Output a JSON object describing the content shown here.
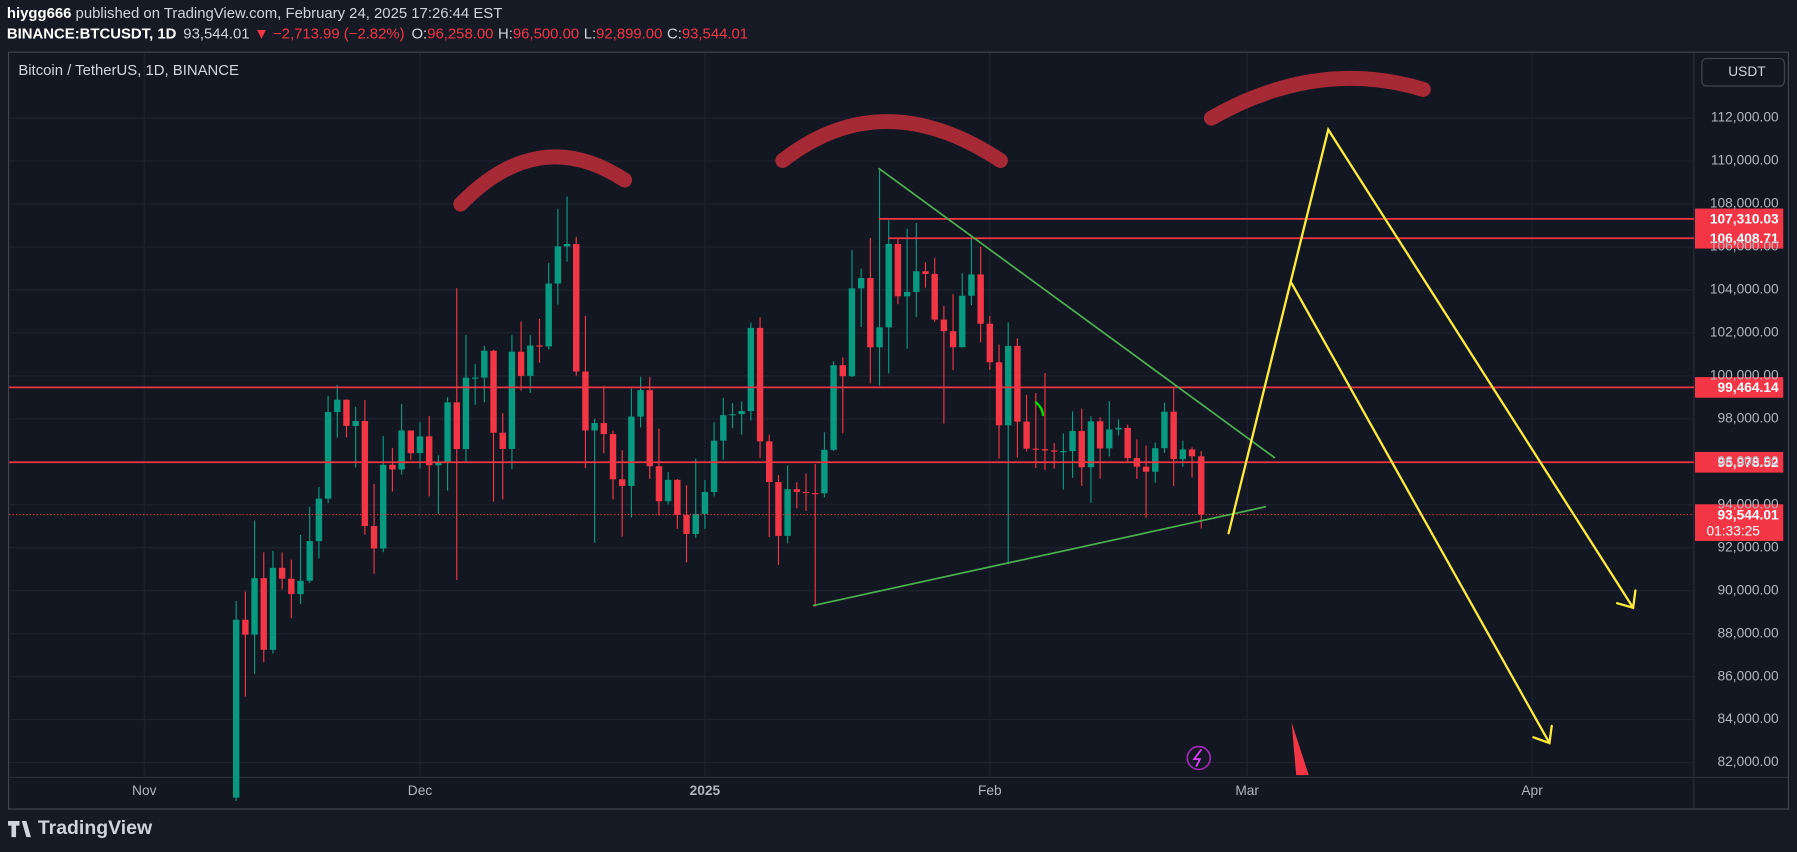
{
  "header": {
    "author": "hiygg666",
    "published": " published on TradingView.com, February 24, 2025 17:26:44 EST",
    "symbol": "BINANCE:BTCUSDT, 1D",
    "price": "93,544.01",
    "change": "▼ −2,713.99 (−2.82%)",
    "ohlc": [
      {
        "key": "O:",
        "value": "96,258.00"
      },
      {
        "key": "H:",
        "value": "96,500.00"
      },
      {
        "key": "L:",
        "value": "92,899.00"
      },
      {
        "key": "C:",
        "value": "93,544.01"
      }
    ]
  },
  "chart_data": {
    "type": "candlestick",
    "title": "Bitcoin / TetherUS, 1D, BINANCE",
    "currency": "USDT",
    "up_color": "#089981",
    "down_color": "#f23645",
    "grid": true,
    "xlim": [
      -14.7,
      168.6
    ],
    "xticks": [
      {
        "value": 0,
        "label": "Nov"
      },
      {
        "value": 30,
        "label": "Dec"
      },
      {
        "value": 61,
        "label": "2025"
      },
      {
        "value": 92,
        "label": "Feb"
      },
      {
        "value": 120,
        "label": "Mar"
      },
      {
        "value": 151,
        "label": "Apr"
      }
    ],
    "ylim": [
      81200,
      114936
    ],
    "yticks": [
      {
        "value": 82000,
        "label": "82,000.00"
      },
      {
        "value": 84000,
        "label": "84,000.00"
      },
      {
        "value": 86000,
        "label": "86,000.00"
      },
      {
        "value": 88000,
        "label": "88,000.00"
      },
      {
        "value": 90000,
        "label": "90,000.00"
      },
      {
        "value": 92000,
        "label": "92,000.00"
      },
      {
        "value": 94000,
        "label": "94,000.00"
      },
      {
        "value": 96000,
        "label": "96,000.00"
      },
      {
        "value": 98000,
        "label": "98,000.00"
      },
      {
        "value": 100000,
        "label": "100,000.00"
      },
      {
        "value": 102000,
        "label": "102,000.00"
      },
      {
        "value": 104000,
        "label": "104,000.00"
      },
      {
        "value": 106000,
        "label": "106,000.00"
      },
      {
        "value": 108000,
        "label": "108,000.00"
      },
      {
        "value": 110000,
        "label": "110,000.00"
      },
      {
        "value": 112000,
        "label": "112,000.00"
      }
    ],
    "hlines": [
      {
        "value": 107310.03,
        "label": "107,310.03"
      },
      {
        "value": 106408.71,
        "label": "106,408.71"
      },
      {
        "value": 99464.14,
        "label": "99,464.14"
      },
      {
        "value": 95978.52,
        "label": "95,978.52"
      }
    ],
    "last_price": {
      "value": 93544.01,
      "label": "93,544.01"
    },
    "countdown": "01:33:25",
    "x": [
      10,
      11,
      12,
      13,
      14,
      15,
      16,
      17,
      18,
      19,
      20,
      21,
      22,
      23,
      24,
      25,
      26,
      27,
      28,
      29,
      30,
      31,
      32,
      33,
      34,
      35,
      36,
      37,
      38,
      39,
      40,
      41,
      42,
      43,
      44,
      45,
      46,
      47,
      48,
      49,
      50,
      51,
      52,
      53,
      54,
      55,
      56,
      57,
      58,
      59,
      60,
      61,
      62,
      63,
      64,
      65,
      66,
      67,
      68,
      69,
      70,
      71,
      72,
      73,
      74,
      75,
      76,
      77,
      78,
      79,
      80,
      81,
      82,
      83,
      84,
      85,
      86,
      87,
      88,
      89,
      90,
      91,
      92,
      93,
      94,
      95,
      96,
      97,
      98,
      99,
      100,
      101,
      102,
      103,
      104,
      105,
      106,
      107,
      108,
      109,
      110,
      111,
      112,
      113,
      114,
      115
    ],
    "open": [
      80370,
      88648,
      87955,
      90585,
      87250,
      91066,
      90558,
      89845,
      90464,
      92310,
      94286,
      98317,
      98892,
      97672,
      97900,
      93010,
      91966,
      95863,
      95643,
      97460,
      96407,
      97185,
      95840,
      96002,
      98768,
      96593,
      99920,
      99923,
      101170,
      97355,
      96600,
      101125,
      100000,
      101417,
      101372,
      104298,
      106030,
      106140,
      100204,
      97461,
      97805,
      97291,
      95186,
      94877,
      98107,
      99336,
      95795,
      94165,
      95163,
      93530,
      92643,
      93576,
      94591,
      96984,
      98174,
      98220,
      98364,
      102235,
      96954,
      95060,
      92552,
      94726,
      94599,
      94545,
      94536,
      96560,
      100497,
      99987,
      104077,
      104556,
      101331,
      102260,
      106143,
      103706,
      103910,
      104870,
      104746,
      102620,
      102082,
      101335,
      103733,
      104722,
      102429,
      100635,
      97700,
      101398,
      97871,
      96615,
      96593,
      96529,
      96482,
      96500,
      97437,
      95748,
      97885,
      96623,
      97508,
      97580,
      96175,
      95773,
      95539,
      96635,
      98333,
      96126,
      96577,
      96258
    ],
    "high": [
      89530,
      89956,
      93265,
      91790,
      91850,
      91779,
      91449,
      92594,
      93905,
      94831,
      99073,
      99588,
      98908,
      98564,
      98871,
      94973,
      97208,
      96650,
      98693,
      97463,
      97836,
      98130,
      96305,
      99000,
      104088,
      101898,
      100551,
      101399,
      101215,
      98270,
      101895,
      102540,
      101895,
      102650,
      105250,
      107780,
      108353,
      106470,
      102800,
      98010,
      99540,
      97448,
      96538,
      99416,
      99960,
      99963,
      97544,
      95525,
      95200,
      94903,
      96150,
      95151,
      97839,
      98976,
      98734,
      98813,
      102480,
      102724,
      97258,
      95382,
      95836,
      95050,
      95450,
      95900,
      97371,
      100681,
      100866,
      105865,
      104988,
      106422,
      109588,
      107240,
      106394,
      106850,
      107120,
      105286,
      105500,
      103260,
      103800,
      104782,
      106457,
      106012,
      102783,
      101456,
      102500,
      101745,
      99120,
      99208,
      100137,
      96880,
      97323,
      98345,
      98478,
      98119,
      98076,
      98826,
      97972,
      97732,
      97040,
      96753,
      96899,
      98756,
      99475,
      96980,
      96671,
      96500
    ],
    "low": [
      80216,
      85072,
      86127,
      86668,
      87073,
      90056,
      88723,
      89376,
      90357,
      91500,
      94077,
      97122,
      97137,
      95734,
      92600,
      90791,
      91792,
      94612,
      95407,
      96092,
      95693,
      94395,
      93578,
      94660,
      90500,
      95981,
      98650,
      98771,
      94150,
      94256,
      95658,
      99311,
      99205,
      100609,
      101237,
      103322,
      105321,
      100000,
      95700,
      92232,
      96398,
      94250,
      92520,
      93400,
      97600,
      95199,
      93500,
      94014,
      92881,
      91317,
      92466,
      92888,
      94392,
      96100,
      97562,
      97274,
      97926,
      96181,
      92500,
      91203,
      92206,
      93831,
      93711,
      89256,
      94346,
      96500,
      97335,
      99950,
      102277,
      99651,
      99550,
      100119,
      103339,
      101262,
      102750,
      104106,
      102520,
      97777,
      100272,
      101328,
      103294,
      101560,
      100279,
      96150,
      91231,
      96208,
      96483,
      95707,
      95620,
      95688,
      94713,
      95256,
      94876,
      94088,
      95217,
      96252,
      97223,
      96000,
      95205,
      93388,
      95029,
      96415,
      94871,
      95770,
      95270,
      92899
    ],
    "close": [
      88648,
      87955,
      90585,
      87250,
      91066,
      90558,
      89845,
      90464,
      92310,
      94286,
      98317,
      98892,
      97672,
      97900,
      93010,
      91966,
      95863,
      95643,
      97460,
      96407,
      97185,
      95840,
      96002,
      98768,
      96593,
      99920,
      99923,
      101170,
      97355,
      96600,
      101125,
      100000,
      101417,
      101372,
      104298,
      106030,
      106140,
      100204,
      97461,
      97805,
      97291,
      95186,
      94877,
      98107,
      99336,
      95795,
      94165,
      95163,
      93530,
      92643,
      93576,
      94591,
      96984,
      98174,
      98220,
      98364,
      102235,
      96954,
      95060,
      92552,
      94726,
      94599,
      94545,
      94536,
      96560,
      100497,
      99987,
      104077,
      104556,
      101331,
      102260,
      106143,
      103706,
      103910,
      104870,
      104746,
      102620,
      102082,
      101335,
      103733,
      104722,
      102429,
      100635,
      97700,
      101398,
      97871,
      96615,
      96593,
      96529,
      96482,
      96500,
      97437,
      95748,
      97885,
      96623,
      97508,
      97580,
      96175,
      95773,
      95539,
      96635,
      98333,
      96126,
      96577,
      96258,
      93544.01
    ]
  },
  "footer": {
    "brand": "TradingView"
  }
}
